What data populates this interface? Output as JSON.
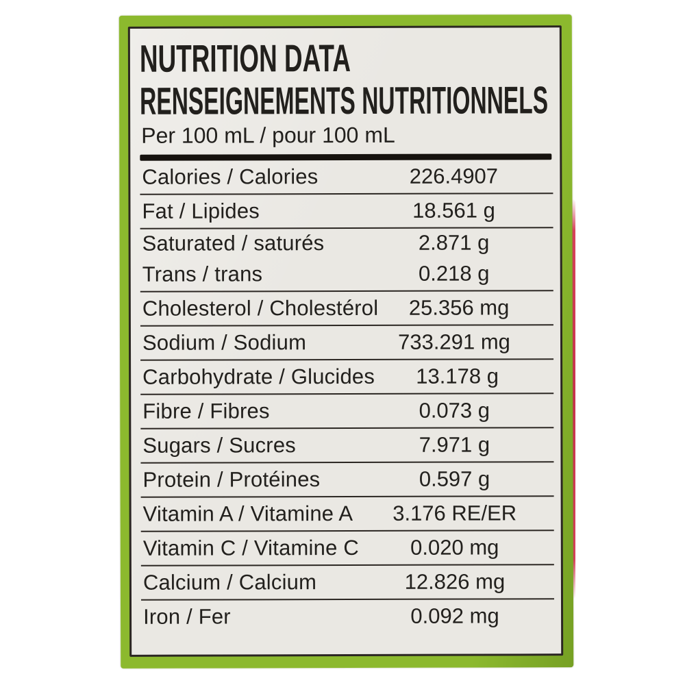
{
  "label": {
    "title_line1": "NUTRITION DATA",
    "title_line2": "RENSEIGNEMENTS NUTRITIONNELS",
    "serving": "Per 100 mL / pour 100 mL",
    "rows": [
      {
        "name": "Calories / Calories",
        "value": "226.4907",
        "group_with_next": false
      },
      {
        "name": "Fat / Lipides",
        "value": "18.561 g",
        "group_with_next": false
      },
      {
        "name": "Saturated / saturés",
        "value": "2.871 g",
        "group_with_next": true
      },
      {
        "name": "Trans / trans",
        "value": "0.218 g",
        "group_with_next": false
      },
      {
        "name": "Cholesterol / Cholestérol",
        "value": "25.356 mg",
        "group_with_next": false
      },
      {
        "name": "Sodium / Sodium",
        "value": "733.291 mg",
        "group_with_next": false
      },
      {
        "name": "Carbohydrate / Glucides",
        "value": "13.178 g",
        "group_with_next": false
      },
      {
        "name": "Fibre / Fibres",
        "value": "0.073 g",
        "group_with_next": false
      },
      {
        "name": "Sugars / Sucres",
        "value": "7.971 g",
        "group_with_next": false
      },
      {
        "name": "Protein / Protéines",
        "value": "0.597 g",
        "group_with_next": false
      },
      {
        "name": "Vitamin A / Vitamine A",
        "value": "3.176 RE/ER",
        "group_with_next": false
      },
      {
        "name": "Vitamin C / Vitamine C",
        "value": "0.020 mg",
        "group_with_next": false
      },
      {
        "name": "Calcium / Calcium",
        "value": "12.826 mg",
        "group_with_next": false
      },
      {
        "name": "Iron / Fer",
        "value": "0.092 mg",
        "group_with_next": false
      }
    ]
  },
  "colors": {
    "package_green": "#8cb92e",
    "package_green_dark": "#76a024",
    "package_red_edge": "#d8435b",
    "label_background": "#eae8e3",
    "text": "#22201d",
    "rule": "#2b2622",
    "header_bar": "#16120e"
  }
}
